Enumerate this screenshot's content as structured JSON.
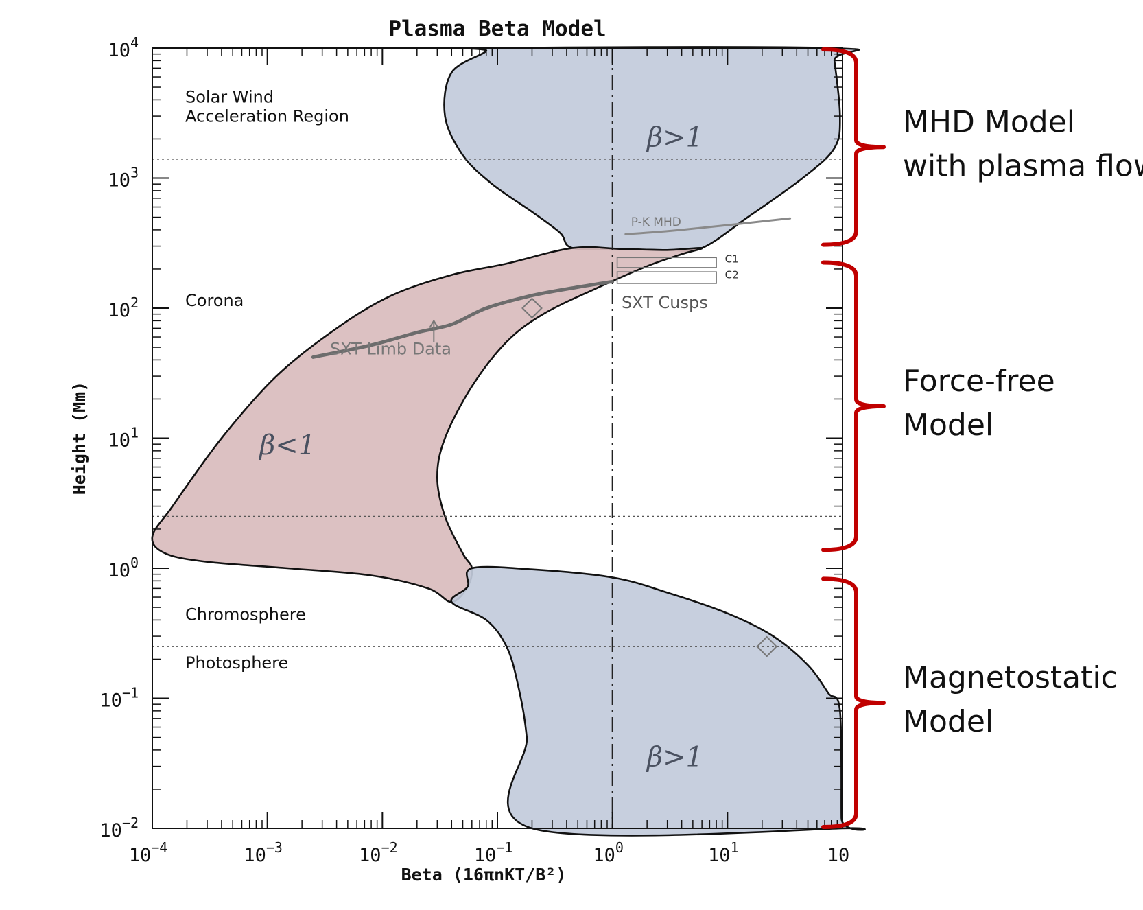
{
  "chart_data": {
    "type": "area",
    "title": "Plasma Beta Model",
    "xlabel": "Beta (16πnKT/B²)",
    "ylabel": "Height (Mm)",
    "xscale": "log",
    "yscale": "log",
    "xlim": [
      0.0001,
      100
    ],
    "ylim": [
      0.01,
      10000
    ],
    "x_ticks": [
      {
        "value": 0.0001,
        "base": "10",
        "exp": "−4"
      },
      {
        "value": 0.001,
        "base": "10",
        "exp": "−3"
      },
      {
        "value": 0.01,
        "base": "10",
        "exp": "−2"
      },
      {
        "value": 0.1,
        "base": "10",
        "exp": "−1"
      },
      {
        "value": 1,
        "base": "10",
        "exp": "0"
      },
      {
        "value": 10,
        "base": "10",
        "exp": "1"
      },
      {
        "value": 100,
        "base": "10",
        "exp": ""
      }
    ],
    "y_ticks": [
      {
        "value": 0.01,
        "base": "10",
        "exp": "−2"
      },
      {
        "value": 0.1,
        "base": "10",
        "exp": "−1"
      },
      {
        "value": 1,
        "base": "10",
        "exp": "0"
      },
      {
        "value": 10,
        "base": "10",
        "exp": "1"
      },
      {
        "value": 100,
        "base": "10",
        "exp": "2"
      },
      {
        "value": 1000,
        "base": "10",
        "exp": "3"
      },
      {
        "value": 10000,
        "base": "10",
        "exp": "4"
      }
    ],
    "reference_lines": {
      "vertical_beta": 1,
      "horizontal_heights": [
        1400,
        2.5,
        0.25
      ]
    },
    "region_labels": [
      {
        "lines": [
          "Solar Wind",
          "Acceleration Region"
        ],
        "height": 3800
      },
      {
        "lines": [
          "Corona"
        ],
        "height": 104
      },
      {
        "lines": [
          "Chromosphere"
        ],
        "height": 0.4
      },
      {
        "lines": [
          "Photosphere"
        ],
        "height": 0.17
      }
    ],
    "regions": [
      {
        "label": "β>1",
        "color": "#c2cbdb",
        "label_beta": 3.5,
        "label_height": 1750,
        "boundary": [
          [
            0.055,
            10000
          ],
          [
            0.08,
            9500
          ],
          [
            0.04,
            6500
          ],
          [
            0.035,
            3000
          ],
          [
            0.05,
            1500
          ],
          [
            0.09,
            900
          ],
          [
            0.2,
            550
          ],
          [
            0.35,
            380
          ],
          [
            0.45,
            290
          ],
          [
            1.2,
            285
          ],
          [
            3,
            280
          ],
          [
            6,
            290
          ],
          [
            15,
            500
          ],
          [
            45,
            1000
          ],
          [
            85,
            1700
          ],
          [
            95,
            3000
          ],
          [
            85,
            8000
          ],
          [
            80,
            10000
          ]
        ]
      },
      {
        "label": "β<1",
        "color": "#d9bcbd",
        "label_beta": 0.0015,
        "label_height": 7.5,
        "boundary": [
          [
            0.45,
            290
          ],
          [
            0.12,
            220
          ],
          [
            0.04,
            180
          ],
          [
            0.012,
            125
          ],
          [
            0.004,
            70
          ],
          [
            0.0012,
            30
          ],
          [
            0.0004,
            10
          ],
          [
            0.00015,
            3
          ],
          [
            0.0001,
            1.75
          ],
          [
            0.00013,
            1.3
          ],
          [
            0.0003,
            1.12
          ],
          [
            0.0015,
            1.0
          ],
          [
            0.008,
            0.88
          ],
          [
            0.025,
            0.7
          ],
          [
            0.04,
            0.55
          ],
          [
            0.055,
            0.72
          ],
          [
            0.06,
            1.0
          ],
          [
            0.05,
            1.3
          ],
          [
            0.035,
            2.5
          ],
          [
            0.03,
            5
          ],
          [
            0.035,
            10
          ],
          [
            0.06,
            25
          ],
          [
            0.12,
            55
          ],
          [
            0.25,
            90
          ],
          [
            0.7,
            140
          ],
          [
            2,
            210
          ],
          [
            4,
            260
          ],
          [
            6,
            290
          ],
          [
            3,
            280
          ],
          [
            1.2,
            285
          ]
        ]
      },
      {
        "label": "β>1",
        "color": "#c2cbdb",
        "label_beta": 3.5,
        "label_height": 0.03,
        "boundary": [
          [
            0.055,
            0.72
          ],
          [
            0.06,
            1.0
          ],
          [
            0.2,
            0.98
          ],
          [
            1,
            0.85
          ],
          [
            3,
            0.65
          ],
          [
            10,
            0.45
          ],
          [
            25,
            0.3
          ],
          [
            50,
            0.18
          ],
          [
            75,
            0.11
          ],
          [
            95,
            0.08
          ],
          [
            98,
            0.012
          ],
          [
            99,
            0.01
          ],
          [
            0.2,
            0.01
          ],
          [
            0.18,
            0.05
          ],
          [
            0.15,
            0.13
          ],
          [
            0.12,
            0.25
          ],
          [
            0.08,
            0.4
          ],
          [
            0.04,
            0.55
          ]
        ]
      }
    ],
    "curves": [
      {
        "name": "P-K MHD",
        "points": [
          [
            1.3,
            370
          ],
          [
            4,
            400
          ],
          [
            35,
            490
          ]
        ]
      },
      {
        "name": "SXT Limb Data",
        "points": [
          [
            0.0025,
            42
          ],
          [
            0.008,
            52
          ],
          [
            0.02,
            65
          ],
          [
            0.04,
            75
          ],
          [
            0.08,
            100
          ],
          [
            0.2,
            125
          ],
          [
            0.5,
            145
          ],
          [
            1,
            160
          ]
        ]
      }
    ],
    "annotations": [
      {
        "text": "P-K MHD",
        "beta": 1.45,
        "height": 430
      },
      {
        "text": "SXT Limb Data",
        "beta": 0.0035,
        "height": 44
      },
      {
        "text": "SXT Cusps",
        "beta": 1.2,
        "height": 100
      },
      {
        "text": "C1",
        "beta": 9.5,
        "height": 225
      },
      {
        "text": "C2",
        "beta": 9.5,
        "height": 170
      }
    ],
    "cusp_boxes": [
      {
        "name": "C1",
        "beta_range": [
          1.1,
          8
        ],
        "height_range": [
          205,
          245
        ]
      },
      {
        "name": "C2",
        "beta_range": [
          1.1,
          8
        ],
        "height_range": [
          155,
          190
        ]
      }
    ],
    "diamond_markers": [
      {
        "beta": 0.2,
        "height": 100
      },
      {
        "beta": 22,
        "height": 0.25
      }
    ],
    "brackets": [
      {
        "lines": [
          "MHD Model",
          "with plasma flow"
        ],
        "height_range": [
          300,
          10000
        ]
      },
      {
        "lines": [
          "Force-free",
          "Model"
        ],
        "height_range": [
          1.35,
          230
        ]
      },
      {
        "lines": [
          "Magnetostatic",
          "Model"
        ],
        "height_range": [
          0.01,
          0.85
        ]
      }
    ]
  }
}
